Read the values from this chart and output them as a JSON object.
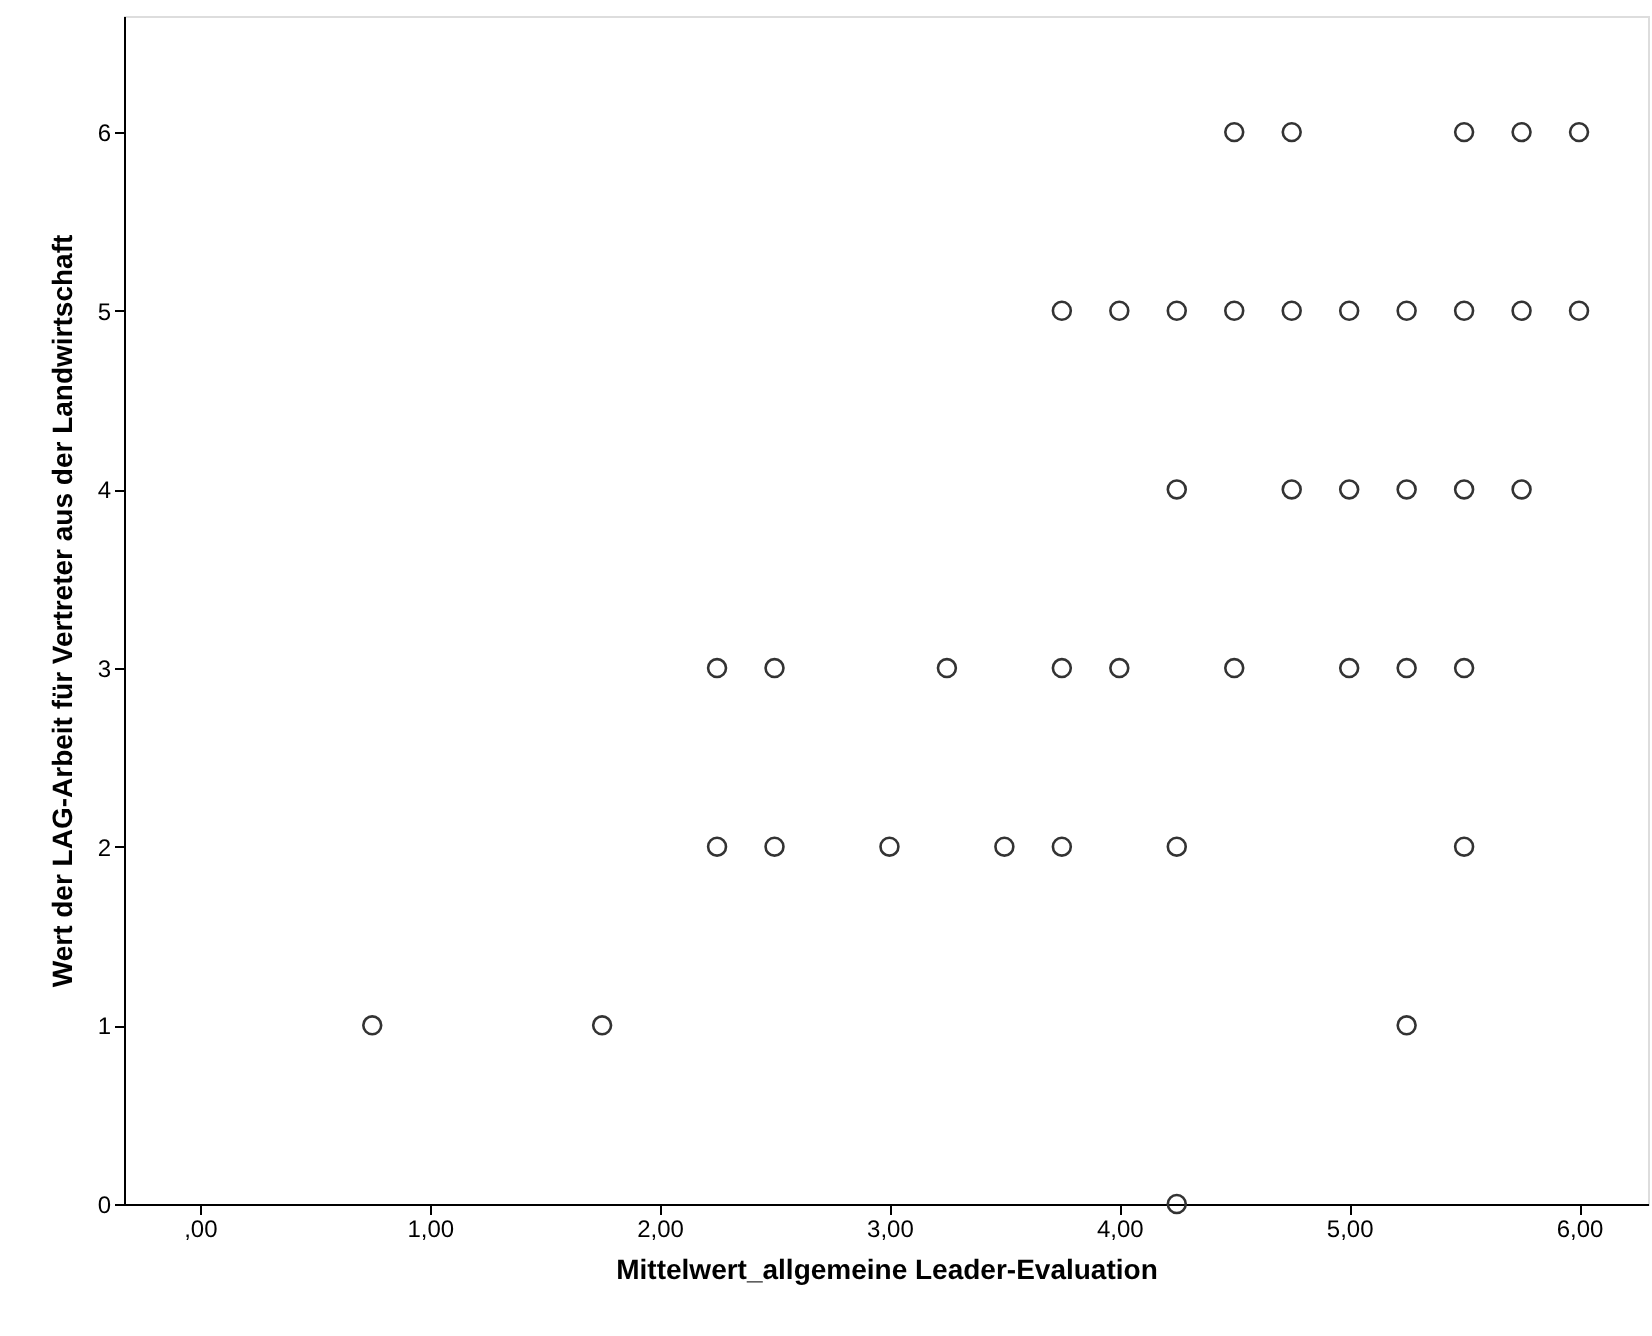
{
  "chart_data": {
    "type": "scatter",
    "xlabel": "Mittelwert_allgemeine Leader-Evaluation",
    "ylabel": "Wert der LAG-Arbeit für Vertreter aus der Landwirtschaft",
    "x": [
      4.5,
      4.75,
      5.5,
      5.75,
      6.0,
      3.75,
      4.0,
      4.25,
      4.5,
      4.75,
      5.0,
      5.25,
      5.5,
      5.75,
      6.0,
      4.25,
      4.75,
      5.0,
      5.25,
      5.5,
      5.75,
      2.25,
      2.5,
      3.25,
      3.75,
      4.0,
      4.5,
      5.0,
      5.25,
      5.5,
      2.25,
      2.5,
      3.0,
      3.5,
      3.75,
      4.25,
      5.5,
      0.75,
      1.75,
      5.25,
      4.25
    ],
    "series": [
      {
        "color": "#333333",
        "values": [
          6,
          6,
          6,
          6,
          6,
          5,
          5,
          5,
          5,
          5,
          5,
          5,
          5,
          5,
          5,
          4,
          4,
          4,
          4,
          4,
          4,
          3,
          3,
          3,
          3,
          3,
          3,
          3,
          3,
          3,
          2,
          2,
          2,
          2,
          2,
          2,
          2,
          1,
          1,
          1,
          0
        ]
      }
    ],
    "xlim": [
      -0.33,
      6.3
    ],
    "xticks": [
      {
        "value": 0,
        "label": ",00"
      },
      {
        "value": 1,
        "label": "1,00"
      },
      {
        "value": 2,
        "label": "2,00"
      },
      {
        "value": 3,
        "label": "3,00"
      },
      {
        "value": 4,
        "label": "4,00"
      },
      {
        "value": 5,
        "label": "5,00"
      },
      {
        "value": 6,
        "label": "6,00"
      }
    ],
    "ylim": [
      0,
      6.65
    ],
    "yticks": [
      0,
      1,
      2,
      3,
      4,
      5,
      6
    ],
    "marker": "circle",
    "grid": false
  }
}
